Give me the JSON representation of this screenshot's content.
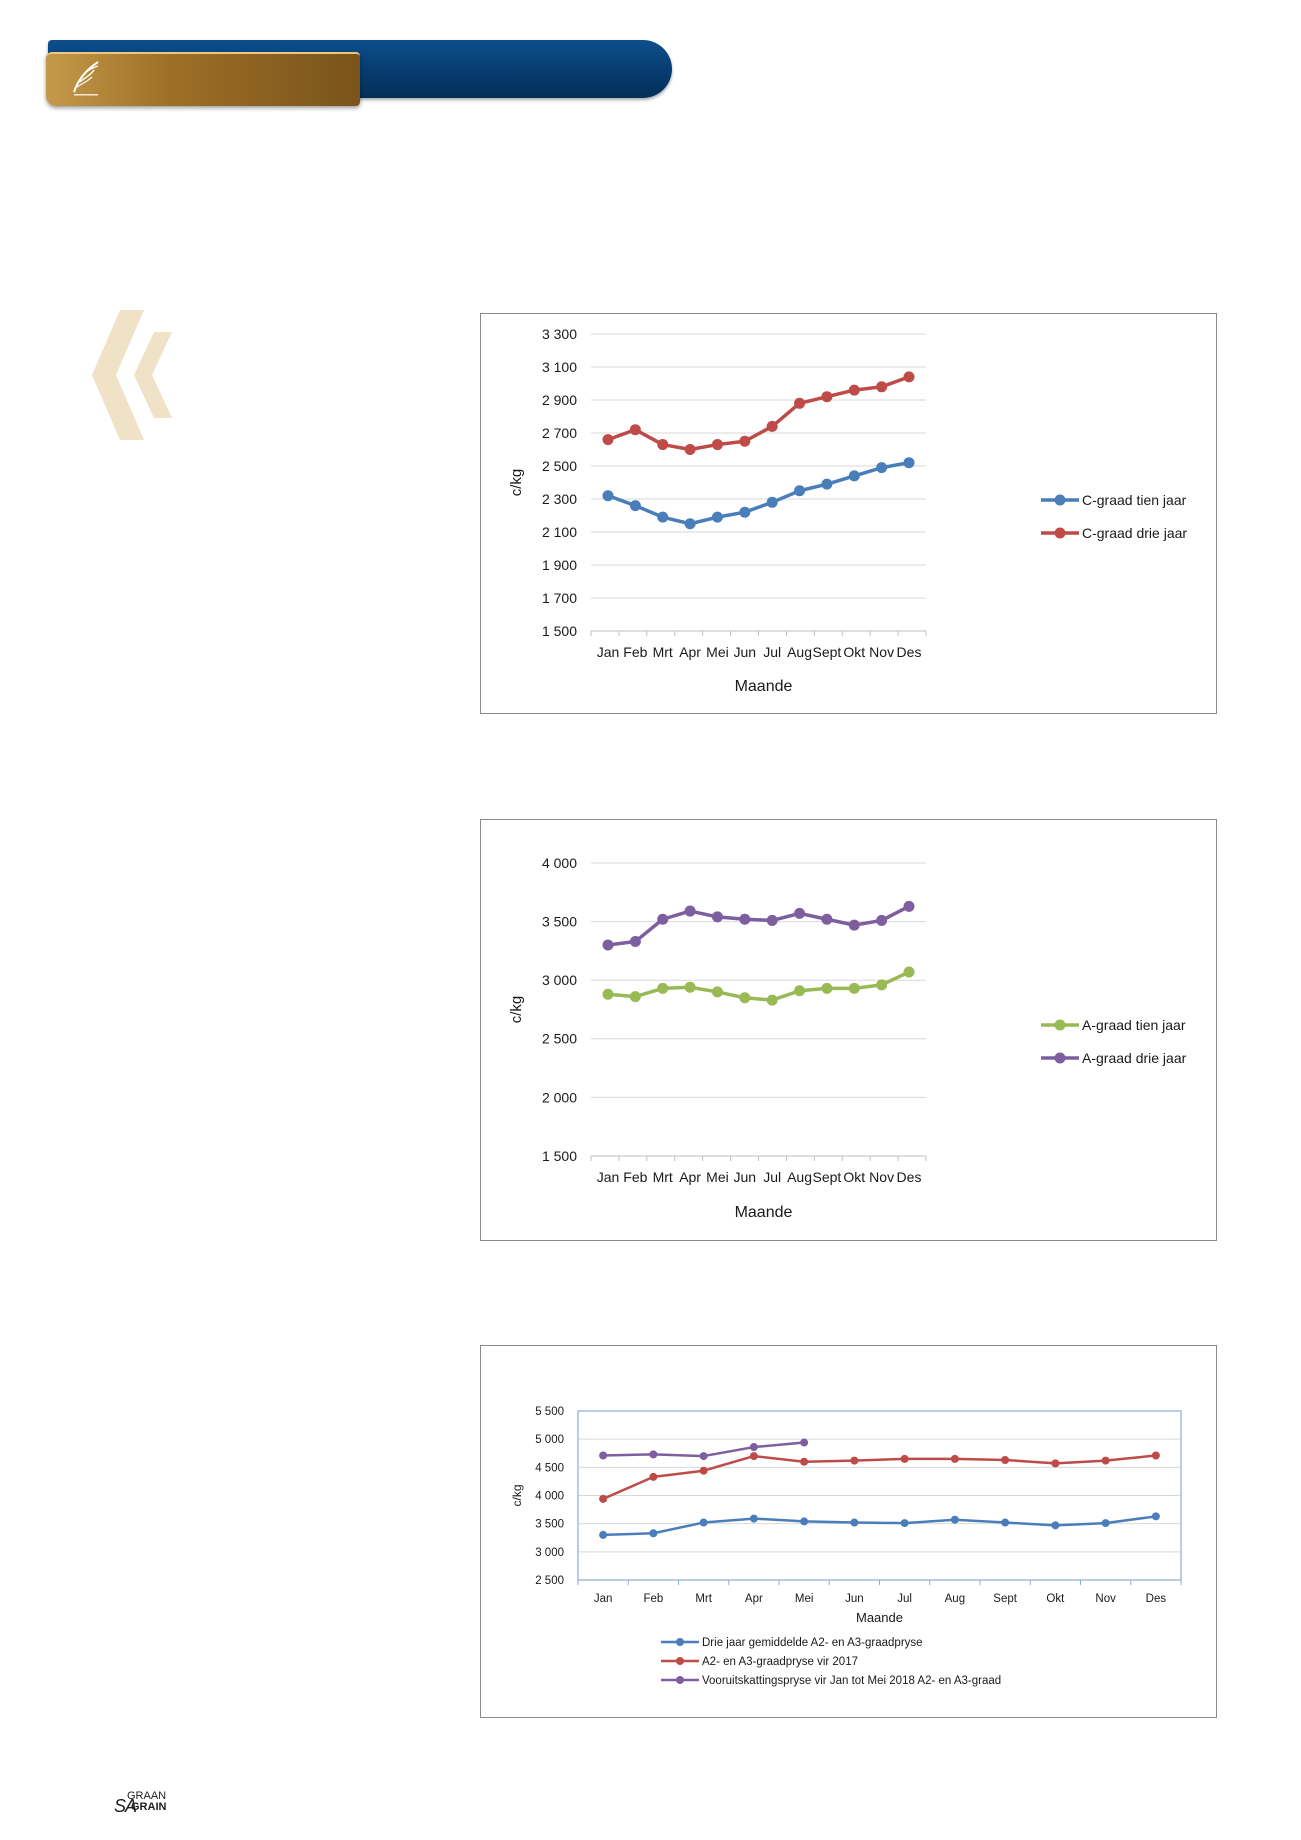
{
  "footer": {
    "brand_sa": "SA",
    "brand_line1": "GRAAN",
    "brand_line2": "GRAIN"
  },
  "colors": {
    "blue": "#4a7ebb",
    "red": "#be4b48",
    "green": "#98b954",
    "purple": "#7d5fa0",
    "banner_blue": "#063a6c",
    "banner_gold": "#9d6f26",
    "chevron": "#efe2c6"
  },
  "chart_data": [
    {
      "type": "line",
      "categories": [
        "Jan",
        "Feb",
        "Mrt",
        "Apr",
        "Mei",
        "Jun",
        "Jul",
        "Aug",
        "Sept",
        "Okt",
        "Nov",
        "Des"
      ],
      "xlabel": "Maande",
      "ylabel": "c/kg",
      "ylim": [
        1500,
        3300
      ],
      "yticks": [
        1500,
        1700,
        1900,
        2100,
        2300,
        2500,
        2700,
        2900,
        3100,
        3300
      ],
      "ytick_labels": [
        "1 500",
        "1 700",
        "1 900",
        "2 100",
        "2 300",
        "2 500",
        "2 700",
        "2 900",
        "3 100",
        "3 300"
      ],
      "grid": true,
      "legend": "right",
      "series": [
        {
          "name": "C-graad tien jaar",
          "color": "#4a7ebb",
          "values": [
            2320,
            2260,
            2190,
            2150,
            2190,
            2220,
            2280,
            2350,
            2390,
            2440,
            2490,
            2520
          ]
        },
        {
          "name": "C-graad drie jaar",
          "color": "#be4b48",
          "values": [
            2660,
            2720,
            2630,
            2600,
            2630,
            2650,
            2740,
            2880,
            2920,
            2960,
            2980,
            3040
          ]
        }
      ]
    },
    {
      "type": "line",
      "categories": [
        "Jan",
        "Feb",
        "Mrt",
        "Apr",
        "Mei",
        "Jun",
        "Jul",
        "Aug",
        "Sept",
        "Okt",
        "Nov",
        "Des"
      ],
      "xlabel": "Maande",
      "ylabel": "c/kg",
      "ylim": [
        1500,
        4000
      ],
      "yticks": [
        1500,
        2000,
        2500,
        3000,
        3500,
        4000
      ],
      "ytick_labels": [
        "1 500",
        "2 000",
        "2 500",
        "3 000",
        "3 500",
        "4 000"
      ],
      "grid": true,
      "legend": "right",
      "series": [
        {
          "name": "A-graad tien jaar",
          "color": "#98b954",
          "values": [
            2880,
            2860,
            2930,
            2940,
            2900,
            2850,
            2830,
            2910,
            2930,
            2930,
            2960,
            3070
          ]
        },
        {
          "name": "A-graad drie jaar",
          "color": "#7d5fa0",
          "values": [
            3300,
            3330,
            3520,
            3590,
            3540,
            3520,
            3510,
            3570,
            3520,
            3470,
            3510,
            3630
          ]
        }
      ]
    },
    {
      "type": "line",
      "categories": [
        "Jan",
        "Feb",
        "Mrt",
        "Apr",
        "Mei",
        "Jun",
        "Jul",
        "Aug",
        "Sept",
        "Okt",
        "Nov",
        "Des"
      ],
      "xlabel": "Maande",
      "ylabel": "c/kg",
      "ylim": [
        2500,
        5500
      ],
      "yticks": [
        2500,
        3000,
        3500,
        4000,
        4500,
        5000,
        5500
      ],
      "ytick_labels": [
        "2 500",
        "3 000",
        "3 500",
        "4 000",
        "4 500",
        "5 000",
        "5 500"
      ],
      "grid": true,
      "legend": "bottom",
      "series": [
        {
          "name": "Drie jaar gemiddelde A2- en A3-graadpryse",
          "color": "#4a7ebb",
          "values": [
            3300,
            3330,
            3520,
            3590,
            3540,
            3520,
            3510,
            3570,
            3520,
            3470,
            3510,
            3630
          ]
        },
        {
          "name": "A2- en A3-graadpryse vir 2017",
          "color": "#be4b48",
          "values": [
            3940,
            4330,
            4440,
            4700,
            4600,
            4620,
            4650,
            4650,
            4630,
            4570,
            4620,
            4710
          ]
        },
        {
          "name": "Vooruitskattingspryse vir Jan tot Mei 2018 A2- en A3-graad",
          "color": "#7d5fa0",
          "values": [
            4710,
            4730,
            4700,
            4860,
            4940,
            null,
            null,
            null,
            null,
            null,
            null,
            null
          ]
        }
      ]
    }
  ]
}
